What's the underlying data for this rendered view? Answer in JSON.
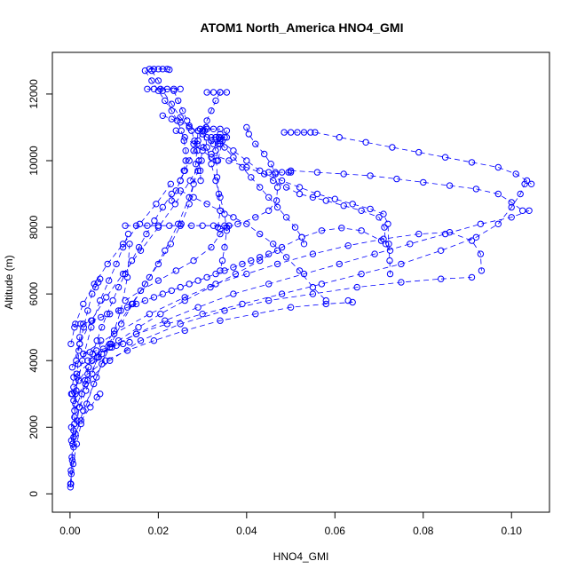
{
  "chart_data": {
    "type": "scatter",
    "title": "ATOM1 North_America HNO4_GMI",
    "xlabel": "HNO4_GMI",
    "ylabel": "Altitude (m)",
    "xlim": [
      -0.004,
      0.1086
    ],
    "ylim": [
      -550,
      13250
    ],
    "x_ticks": [
      0.0,
      0.02,
      0.04,
      0.06,
      0.08,
      0.1
    ],
    "x_tick_labels": [
      "0.00",
      "0.02",
      "0.04",
      "0.06",
      "0.08",
      "0.10"
    ],
    "y_ticks": [
      0,
      2000,
      4000,
      6000,
      8000,
      10000,
      12000
    ],
    "y_tick_labels": [
      "0",
      "2000",
      "4000",
      "6000",
      "8000",
      "10000",
      "12000"
    ],
    "grid": false,
    "legend": "none",
    "color": "#0000ff",
    "marker": "open-circle",
    "series": [
      {
        "x": [
          0.0001,
          0.0003,
          0.0005,
          0.0008,
          0.0012,
          0.0016,
          0.0021,
          0.0027,
          0.0034,
          0.0042,
          0.0051,
          0.0061,
          0.0072,
          0.0084,
          0.0097,
          0.011,
          0.0125,
          0.014,
          0.0156,
          0.0173,
          0.0191,
          0.021,
          0.023
        ],
        "y": [
          200,
          600,
          1000,
          1400,
          1800,
          2200,
          2600,
          3000,
          3400,
          3800,
          4200,
          4600,
          5000,
          5400,
          5800,
          6200,
          6600,
          7000,
          7400,
          7800,
          8200,
          8600,
          9000
        ]
      },
      {
        "x": [
          0.0002,
          0.0007,
          0.0015,
          0.0025,
          0.0038,
          0.0054,
          0.0072,
          0.0093,
          0.0116,
          0.0142,
          0.017,
          0.02,
          0.0228,
          0.0252,
          0.027,
          0.028,
          0.0285,
          0.0288,
          0.029
        ],
        "y": [
          300,
          900,
          1500,
          2100,
          2700,
          3300,
          3900,
          4500,
          5100,
          5700,
          6300,
          6900,
          7500,
          8100,
          8700,
          9300,
          9900,
          10500,
          10900
        ]
      },
      {
        "x": [
          0.0005,
          0.002,
          0.0042,
          0.0072,
          0.011,
          0.0155,
          0.0205,
          0.026,
          0.0318,
          0.0375,
          0.043,
          0.048,
          0.0525,
          0.057,
          0.0615,
          0.066,
          0.0705,
          0.0725
        ],
        "y": [
          3000,
          3400,
          3800,
          4200,
          4600,
          5000,
          5400,
          5800,
          6200,
          6600,
          7000,
          7400,
          7700,
          7900,
          7980,
          7900,
          7600,
          7300
        ]
      },
      {
        "x": [
          0.0015,
          0.005,
          0.0095,
          0.015,
          0.0215,
          0.029,
          0.037,
          0.045,
          0.053,
          0.061,
          0.069,
          0.077,
          0.085,
          0.093,
          0.1,
          0.104
        ],
        "y": [
          3600,
          4000,
          4400,
          4800,
          5200,
          5600,
          6000,
          6300,
          6600,
          6900,
          7200,
          7500,
          7800,
          8100,
          8300,
          8500
        ]
      },
      {
        "x": [
          0.004,
          0.009,
          0.015,
          0.022,
          0.03,
          0.039,
          0.048,
          0.057,
          0.066,
          0.075,
          0.084,
          0.092,
          0.097,
          0.1,
          0.102,
          0.103
        ],
        "y": [
          4000,
          4400,
          4800,
          5100,
          5400,
          5700,
          6000,
          6300,
          6600,
          6900,
          7300,
          7700,
          8100,
          8600,
          9000,
          9300
        ]
      },
      {
        "x": [
          0.0008,
          0.004,
          0.009,
          0.016,
          0.025,
          0.035,
          0.045,
          0.055,
          0.065,
          0.075,
          0.084,
          0.091
        ],
        "y": [
          2800,
          3400,
          4000,
          4600,
          5100,
          5500,
          5800,
          6000,
          6200,
          6350,
          6450,
          6500
        ]
      },
      {
        "x": [
          0.003,
          0.01,
          0.018,
          0.026,
          0.033,
          0.04,
          0.047,
          0.055,
          0.063,
          0.071,
          0.079,
          0.086,
          0.091,
          0.093,
          0.0932
        ],
        "y": [
          4200,
          4800,
          5400,
          5900,
          6300,
          6600,
          6900,
          7200,
          7450,
          7650,
          7800,
          7850,
          7600,
          7200,
          6700
        ]
      },
      {
        "x": [
          0.0006,
          0.003,
          0.006,
          0.009,
          0.0115,
          0.013,
          0.0135
        ],
        "y": [
          1500,
          2500,
          3500,
          4500,
          5500,
          6500,
          7500
        ]
      },
      {
        "x": [
          0.0008,
          0.0025,
          0.0046,
          0.0061,
          0.0068
        ],
        "y": [
          1700,
          2200,
          2600,
          2900,
          3000
        ]
      },
      {
        "x": [
          0.0003,
          0.0012,
          0.0028,
          0.0048,
          0.0068,
          0.0088,
          0.0105,
          0.012,
          0.0132
        ],
        "y": [
          2000,
          3000,
          4000,
          5000,
          5800,
          6400,
          6900,
          7400,
          7800
        ]
      },
      {
        "x": [
          0.0125,
          0.016,
          0.02,
          0.024,
          0.028,
          0.032,
          0.034,
          0.0355,
          0.036
        ],
        "y": [
          5800,
          6100,
          6400,
          6700,
          7000,
          7400,
          7800,
          8000,
          8050
        ]
      },
      {
        "x": [
          0.0125,
          0.015,
          0.0175,
          0.02,
          0.0225,
          0.025,
          0.0275,
          0.03,
          0.0325,
          0.035,
          0.036
        ],
        "y": [
          8050,
          8050,
          8050,
          8050,
          8050,
          8050,
          8050,
          8050,
          8050,
          8050,
          8050
        ]
      },
      {
        "x": [
          0.0335,
          0.034,
          0.0337,
          0.0333,
          0.0332,
          0.0335,
          0.0337,
          0.034
        ],
        "y": [
          8000,
          8500,
          9000,
          9500,
          10000,
          10500,
          10700,
          10800
        ]
      },
      {
        "x": [
          0.018,
          0.019,
          0.02,
          0.021,
          0.022,
          0.0225
        ],
        "y": [
          12750,
          12750,
          12750,
          12750,
          12750,
          12730
        ]
      },
      {
        "x": [
          0.0175,
          0.019,
          0.0205,
          0.022,
          0.0235,
          0.025
        ],
        "y": [
          12150,
          12150,
          12150,
          12150,
          12150,
          12150
        ]
      },
      {
        "x": [
          0.0185,
          0.02,
          0.021,
          0.023,
          0.025,
          0.027,
          0.03,
          0.032,
          0.034
        ],
        "y": [
          12700,
          12400,
          12100,
          11700,
          11300,
          11000,
          10800,
          10600,
          10500
        ]
      },
      {
        "x": [
          0.031,
          0.0325,
          0.034,
          0.0355
        ],
        "y": [
          12050,
          12050,
          12050,
          12050
        ]
      },
      {
        "x": [
          0.034,
          0.033,
          0.032,
          0.031,
          0.03,
          0.029,
          0.028,
          0.027,
          0.026,
          0.025,
          0.024,
          0.023
        ],
        "y": [
          12050,
          11800,
          11500,
          11200,
          10900,
          10600,
          10300,
          10000,
          9700,
          9400,
          9100,
          8800
        ]
      },
      {
        "x": [
          0.0295,
          0.031,
          0.0325,
          0.034
        ],
        "y": [
          10950,
          10950,
          10950,
          10950
        ]
      },
      {
        "x": [
          0.024,
          0.026,
          0.028,
          0.03,
          0.032,
          0.0335,
          0.0345,
          0.0355
        ],
        "y": [
          10900,
          10700,
          10500,
          10300,
          10100,
          10000,
          10600,
          10900
        ]
      },
      {
        "x": [
          0.032,
          0.033,
          0.034,
          0.035,
          0.0355
        ],
        "y": [
          10700,
          10700,
          10700,
          10700,
          10700
        ]
      },
      {
        "x": [
          0.021,
          0.023,
          0.025,
          0.027,
          0.029,
          0.031,
          0.0325,
          0.033
        ],
        "y": [
          11350,
          11250,
          11150,
          11050,
          10900,
          10700,
          10500,
          10300
        ]
      },
      {
        "x": [
          0.04,
          0.0405,
          0.042,
          0.044,
          0.0455,
          0.0465,
          0.047,
          0.0468,
          0.045,
          0.042,
          0.038,
          0.034
        ],
        "y": [
          11000,
          10800,
          10500,
          10200,
          9900,
          9600,
          9200,
          8800,
          8500,
          8300,
          8100,
          7950
        ]
      },
      {
        "x": [
          0.045,
          0.0465,
          0.048,
          0.0495,
          0.05
        ],
        "y": [
          9650,
          9650,
          9650,
          9650,
          9650
        ]
      },
      {
        "x": [
          0.0485,
          0.05,
          0.0515,
          0.053,
          0.0545
        ],
        "y": [
          10850,
          10850,
          10850,
          10850,
          10850
        ]
      },
      {
        "x": [
          0.0555,
          0.061,
          0.067,
          0.073,
          0.079,
          0.085,
          0.091,
          0.097,
          0.101,
          0.1035,
          0.1045
        ],
        "y": [
          10850,
          10700,
          10550,
          10400,
          10250,
          10100,
          9950,
          9800,
          9600,
          9400,
          9300
        ]
      },
      {
        "x": [
          0.05,
          0.056,
          0.062,
          0.068,
          0.074,
          0.08,
          0.086,
          0.092,
          0.097,
          0.1,
          0.1025
        ],
        "y": [
          9700,
          9650,
          9600,
          9550,
          9450,
          9350,
          9250,
          9150,
          9000,
          8750,
          8500
        ]
      },
      {
        "x": [
          0.034,
          0.037,
          0.04,
          0.043,
          0.046,
          0.049,
          0.052,
          0.055,
          0.058,
          0.062,
          0.066,
          0.07,
          0.0712,
          0.0715
        ],
        "y": [
          10600,
          10300,
          10000,
          9700,
          9400,
          9200,
          9000,
          8900,
          8800,
          8650,
          8500,
          8300,
          8000,
          7500
        ]
      },
      {
        "x": [
          0.032,
          0.036,
          0.04,
          0.044,
          0.048,
          0.052,
          0.056,
          0.06,
          0.064,
          0.068,
          0.071,
          0.072,
          0.0722,
          0.0724,
          0.0725
        ],
        "y": [
          10200,
          10000,
          9800,
          9600,
          9400,
          9200,
          9000,
          8850,
          8700,
          8550,
          8400,
          8100,
          7500,
          7000,
          6600
        ]
      },
      {
        "x": [
          0.025,
          0.028,
          0.031,
          0.034,
          0.037,
          0.04,
          0.043,
          0.046,
          0.049,
          0.052,
          0.055,
          0.058
        ],
        "y": [
          9100,
          8900,
          8700,
          8500,
          8300,
          8100,
          7800,
          7500,
          7100,
          6700,
          6200,
          5800
        ]
      },
      {
        "x": [
          0.0305,
          0.031,
          0.032,
          0.033,
          0.034,
          0.035,
          0.0355,
          0.035,
          0.0345,
          0.034
        ],
        "y": [
          10900,
          10400,
          9900,
          9400,
          8900,
          8400,
          7900,
          7400,
          7000,
          6700
        ]
      },
      {
        "x": [
          0.033,
          0.035,
          0.037,
          0.039,
          0.041,
          0.043,
          0.045,
          0.047,
          0.049,
          0.051,
          0.0525,
          0.053
        ],
        "y": [
          10700,
          10400,
          10100,
          9800,
          9500,
          9200,
          8900,
          8600,
          8300,
          8000,
          7700,
          7500
        ]
      },
      {
        "x": [
          0.0235,
          0.0245,
          0.0255,
          0.0265,
          0.0275,
          0.0282,
          0.0288,
          0.0292,
          0.0295,
          0.0296
        ],
        "y": [
          12100,
          11800,
          11500,
          11200,
          10900,
          10600,
          10300,
          10000,
          9700,
          9400
        ]
      },
      {
        "x": [
          0.017,
          0.0185,
          0.02,
          0.0215,
          0.023,
          0.0243,
          0.0252,
          0.0258,
          0.0262,
          0.0262,
          0.0258,
          0.025
        ],
        "y": [
          12700,
          12400,
          12100,
          11800,
          11500,
          11200,
          10900,
          10600,
          10300,
          10000,
          9700,
          9400
        ]
      },
      {
        "x": [
          0.001,
          0.0035,
          0.0065,
          0.01,
          0.014,
          0.018,
          0.0215,
          0.0245,
          0.027,
          0.029,
          0.0302,
          0.0308
        ],
        "y": [
          2500,
          3300,
          4100,
          4900,
          5700,
          6500,
          7300,
          8100,
          8900,
          9700,
          10400,
          11000
        ]
      },
      {
        "x": [
          0.0005,
          0.0022,
          0.0048,
          0.0082,
          0.012,
          0.016,
          0.02,
          0.0238,
          0.0272,
          0.0298
        ],
        "y": [
          3800,
          4500,
          5200,
          5900,
          6600,
          7300,
          8000,
          8700,
          9400,
          10000
        ]
      },
      {
        "x": [
          0.0002,
          0.0012,
          0.003,
          0.0055,
          0.0085,
          0.012,
          0.0158,
          0.0195,
          0.0228
        ],
        "y": [
          4500,
          5100,
          5700,
          6300,
          6900,
          7500,
          8100,
          8700,
          9300
        ]
      },
      {
        "x": [
          0.001,
          0.003,
          0.005,
          0.007,
          0.009,
          0.011,
          0.013,
          0.015,
          0.017,
          0.019,
          0.021,
          0.023,
          0.025,
          0.027,
          0.029,
          0.031,
          0.033,
          0.035,
          0.037,
          0.039,
          0.041,
          0.043,
          0.045,
          0.047
        ],
        "y": [
          5000,
          5100,
          5200,
          5300,
          5400,
          5500,
          5600,
          5700,
          5800,
          5900,
          6000,
          6100,
          6200,
          6300,
          6400,
          6500,
          6600,
          6700,
          6800,
          6900,
          7000,
          7100,
          7200,
          7300
        ]
      },
      {
        "x": [
          0.0008,
          0.004,
          0.008,
          0.013,
          0.019,
          0.026,
          0.034,
          0.042,
          0.05,
          0.058,
          0.064,
          0.063
        ],
        "y": [
          3200,
          3600,
          4000,
          4300,
          4600,
          4900,
          5200,
          5400,
          5600,
          5700,
          5750,
          5800
        ]
      },
      {
        "x": [
          0.0003,
          0.001,
          0.0022,
          0.0036,
          0.005,
          0.0062,
          0.007
        ],
        "y": [
          1600,
          2100,
          2600,
          3100,
          3600,
          4100,
          4600
        ]
      },
      {
        "x": [
          0.0001,
          0.0002,
          0.0004,
          0.0006,
          0.0008,
          0.001,
          0.0012,
          0.0014,
          0.0016,
          0.0018,
          0.002,
          0.0022,
          0.0024
        ],
        "y": [
          300,
          700,
          1100,
          1500,
          1900,
          2300,
          2700,
          3100,
          3500,
          3900,
          4300,
          4700,
          5100
        ]
      },
      {
        "x": [
          0.0003,
          0.0008,
          0.0014,
          0.0022,
          0.0031,
          0.004,
          0.005,
          0.0058,
          0.0064,
          0.0068
        ],
        "y": [
          3000,
          3500,
          4000,
          4500,
          5000,
          5500,
          6000,
          6200,
          6350,
          6450
        ]
      },
      {
        "x": [
          0.003,
          0.0045,
          0.006,
          0.0075,
          0.009,
          0.0105,
          0.012,
          0.0135
        ],
        "y": [
          4200,
          4250,
          4300,
          4350,
          4400,
          4450,
          4500,
          4550
        ]
      }
    ]
  }
}
